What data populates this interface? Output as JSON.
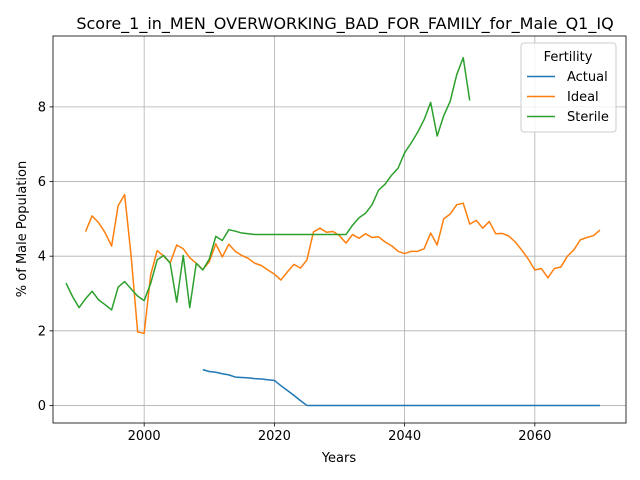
{
  "chart_data": {
    "type": "line",
    "title": "Score_1_in_MEN_OVERWORKING_BAD_FOR_FAMILY_for_Male_Q1_IQ",
    "xlabel": "Years",
    "ylabel": "% of Male Population",
    "xlim": [
      1986,
      2074
    ],
    "ylim": [
      -0.47,
      9.9
    ],
    "xticks": [
      2000,
      2020,
      2040,
      2060
    ],
    "yticks": [
      0,
      2,
      4,
      6,
      8
    ],
    "grid": true,
    "legend": {
      "title": "Fertility",
      "placement": "top-right"
    },
    "series": [
      {
        "name": "Actual",
        "color": "#1f77b4",
        "points": [
          [
            2009,
            0.96
          ],
          [
            2010,
            0.91
          ],
          [
            2011,
            0.89
          ],
          [
            2012,
            0.85
          ],
          [
            2013,
            0.82
          ],
          [
            2014,
            0.76
          ],
          [
            2015,
            0.75
          ],
          [
            2016,
            0.74
          ],
          [
            2017,
            0.72
          ],
          [
            2018,
            0.71
          ],
          [
            2019,
            0.69
          ],
          [
            2020,
            0.67
          ],
          [
            2021,
            0.53
          ],
          [
            2022,
            0.4
          ],
          [
            2023,
            0.27
          ],
          [
            2024,
            0.13
          ],
          [
            2025,
            0.0
          ],
          [
            2030,
            0.0
          ],
          [
            2040,
            0.0
          ],
          [
            2050,
            0.0
          ],
          [
            2060,
            0.0
          ],
          [
            2070,
            0.0
          ]
        ]
      },
      {
        "name": "Ideal",
        "color": "#ff7f0e",
        "points": [
          [
            1991,
            4.66
          ],
          [
            1992,
            5.08
          ],
          [
            1993,
            4.9
          ],
          [
            1994,
            4.63
          ],
          [
            1995,
            4.27
          ],
          [
            1996,
            5.35
          ],
          [
            1997,
            5.65
          ],
          [
            1998,
            4.0
          ],
          [
            1999,
            1.97
          ],
          [
            2000,
            1.93
          ],
          [
            2001,
            3.5
          ],
          [
            2002,
            4.15
          ],
          [
            2003,
            4.0
          ],
          [
            2004,
            3.82
          ],
          [
            2005,
            4.3
          ],
          [
            2006,
            4.2
          ],
          [
            2007,
            3.96
          ],
          [
            2008,
            3.81
          ],
          [
            2009,
            3.64
          ],
          [
            2010,
            3.85
          ],
          [
            2011,
            4.33
          ],
          [
            2012,
            3.98
          ],
          [
            2013,
            4.32
          ],
          [
            2014,
            4.13
          ],
          [
            2015,
            4.02
          ],
          [
            2016,
            3.94
          ],
          [
            2017,
            3.81
          ],
          [
            2018,
            3.75
          ],
          [
            2019,
            3.63
          ],
          [
            2020,
            3.52
          ],
          [
            2021,
            3.36
          ],
          [
            2022,
            3.58
          ],
          [
            2023,
            3.78
          ],
          [
            2024,
            3.68
          ],
          [
            2025,
            3.9
          ],
          [
            2026,
            4.65
          ],
          [
            2027,
            4.75
          ],
          [
            2028,
            4.64
          ],
          [
            2029,
            4.66
          ],
          [
            2030,
            4.55
          ],
          [
            2031,
            4.35
          ],
          [
            2032,
            4.58
          ],
          [
            2033,
            4.48
          ],
          [
            2034,
            4.6
          ],
          [
            2035,
            4.5
          ],
          [
            2036,
            4.52
          ],
          [
            2037,
            4.38
          ],
          [
            2038,
            4.28
          ],
          [
            2039,
            4.13
          ],
          [
            2040,
            4.07
          ],
          [
            2041,
            4.13
          ],
          [
            2042,
            4.13
          ],
          [
            2043,
            4.2
          ],
          [
            2044,
            4.62
          ],
          [
            2045,
            4.3
          ],
          [
            2046,
            5.0
          ],
          [
            2047,
            5.13
          ],
          [
            2048,
            5.38
          ],
          [
            2049,
            5.42
          ],
          [
            2050,
            4.86
          ],
          [
            2051,
            4.96
          ],
          [
            2052,
            4.75
          ],
          [
            2053,
            4.93
          ],
          [
            2054,
            4.6
          ],
          [
            2055,
            4.61
          ],
          [
            2056,
            4.54
          ],
          [
            2057,
            4.38
          ],
          [
            2058,
            4.16
          ],
          [
            2059,
            3.92
          ],
          [
            2060,
            3.63
          ],
          [
            2061,
            3.67
          ],
          [
            2062,
            3.42
          ],
          [
            2063,
            3.67
          ],
          [
            2064,
            3.71
          ],
          [
            2065,
            4.0
          ],
          [
            2066,
            4.17
          ],
          [
            2067,
            4.44
          ],
          [
            2068,
            4.5
          ],
          [
            2069,
            4.55
          ],
          [
            2070,
            4.7
          ]
        ]
      },
      {
        "name": "Sterile",
        "color": "#2ca02c",
        "points": [
          [
            1988,
            3.28
          ],
          [
            1989,
            2.92
          ],
          [
            1990,
            2.62
          ],
          [
            1991,
            2.86
          ],
          [
            1992,
            3.06
          ],
          [
            1993,
            2.83
          ],
          [
            1994,
            2.7
          ],
          [
            1995,
            2.56
          ],
          [
            1996,
            3.17
          ],
          [
            1997,
            3.32
          ],
          [
            1998,
            3.12
          ],
          [
            1999,
            2.93
          ],
          [
            2000,
            2.81
          ],
          [
            2001,
            3.27
          ],
          [
            2002,
            3.9
          ],
          [
            2003,
            4.02
          ],
          [
            2004,
            3.81
          ],
          [
            2005,
            2.77
          ],
          [
            2006,
            4.02
          ],
          [
            2007,
            2.62
          ],
          [
            2008,
            3.81
          ],
          [
            2009,
            3.63
          ],
          [
            2010,
            3.92
          ],
          [
            2011,
            4.53
          ],
          [
            2012,
            4.42
          ],
          [
            2013,
            4.71
          ],
          [
            2014,
            4.67
          ],
          [
            2015,
            4.62
          ],
          [
            2016,
            4.6
          ],
          [
            2017,
            4.58
          ],
          [
            2018,
            4.58
          ],
          [
            2019,
            4.58
          ],
          [
            2020,
            4.58
          ],
          [
            2025,
            4.58
          ],
          [
            2030,
            4.58
          ],
          [
            2031,
            4.58
          ],
          [
            2032,
            4.83
          ],
          [
            2033,
            5.03
          ],
          [
            2034,
            5.15
          ],
          [
            2035,
            5.38
          ],
          [
            2036,
            5.77
          ],
          [
            2037,
            5.93
          ],
          [
            2038,
            6.17
          ],
          [
            2039,
            6.36
          ],
          [
            2040,
            6.77
          ],
          [
            2041,
            7.03
          ],
          [
            2042,
            7.32
          ],
          [
            2043,
            7.66
          ],
          [
            2044,
            8.12
          ],
          [
            2045,
            7.22
          ],
          [
            2046,
            7.76
          ],
          [
            2047,
            8.15
          ],
          [
            2048,
            8.86
          ],
          [
            2049,
            9.32
          ],
          [
            2050,
            8.17
          ]
        ]
      }
    ]
  }
}
